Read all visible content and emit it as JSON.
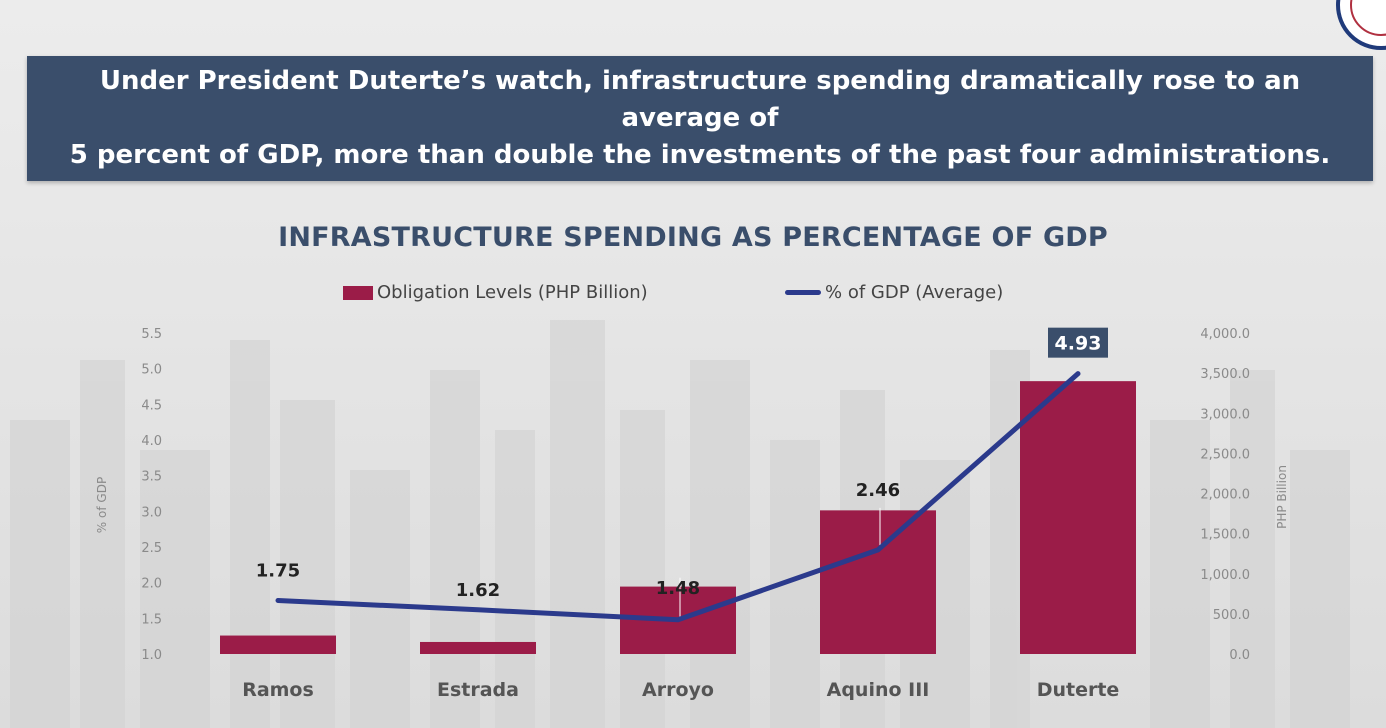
{
  "banner": {
    "text_line1": "Under President Duterte’s watch, infrastructure spending dramatically rose to an average of",
    "text_line2": "5 percent of GDP, more than double the investments of the past four administrations."
  },
  "colors": {
    "banner_bg": "#3a4e6b",
    "bar": "#9b1c48",
    "line": "#2b3a8c",
    "title": "#3a4e6b"
  },
  "chart_data": {
    "type": "bar",
    "title": "INFRASTRUCTURE SPENDING AS PERCENTAGE OF GDP",
    "categories": [
      "Ramos",
      "Estrada",
      "Arroyo",
      "Aquino III",
      "Duterte"
    ],
    "series": [
      {
        "name": "Obligation Levels (PHP Billion)",
        "type": "bar",
        "axis": "right",
        "values": [
          230,
          150,
          840,
          1790,
          3400
        ]
      },
      {
        "name": "% of GDP (Average)",
        "type": "line",
        "axis": "left",
        "values": [
          1.75,
          1.62,
          1.48,
          2.46,
          4.93
        ]
      }
    ],
    "data_labels": [
      "1.75",
      "1.62",
      "1.48",
      "2.46",
      "4.93"
    ],
    "ylabel": "% of GDP",
    "ylabel_right": "PHP Billion",
    "ylim": [
      1.0,
      5.5
    ],
    "ylim_right": [
      0,
      4000
    ],
    "yticks": [
      "5.5",
      "5.0",
      "4.5",
      "4.0",
      "3.5",
      "3.0",
      "2.5",
      "2.0",
      "1.5",
      "1.0"
    ],
    "yticks_right": [
      "4,000.0",
      "3,500.0",
      "3,000.0",
      "2,500.0",
      "2,000.0",
      "1,500.0",
      "1,000.0",
      "500.0",
      "0.0"
    ],
    "legend_position": "top",
    "grid": false
  }
}
